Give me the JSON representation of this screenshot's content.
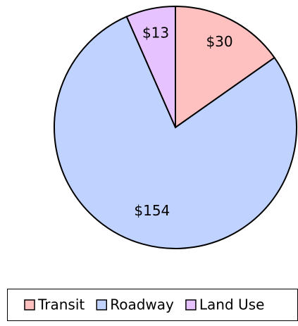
{
  "chart_data": {
    "type": "pie",
    "categories": [
      "Transit",
      "Roadway",
      "Land Use"
    ],
    "values": [
      30,
      154,
      13
    ],
    "value_labels": [
      "$30",
      "$154",
      "$13"
    ],
    "colors": [
      "#ffc0c0",
      "#c0d2ff",
      "#e6c2ff"
    ],
    "legend": "bottom"
  }
}
